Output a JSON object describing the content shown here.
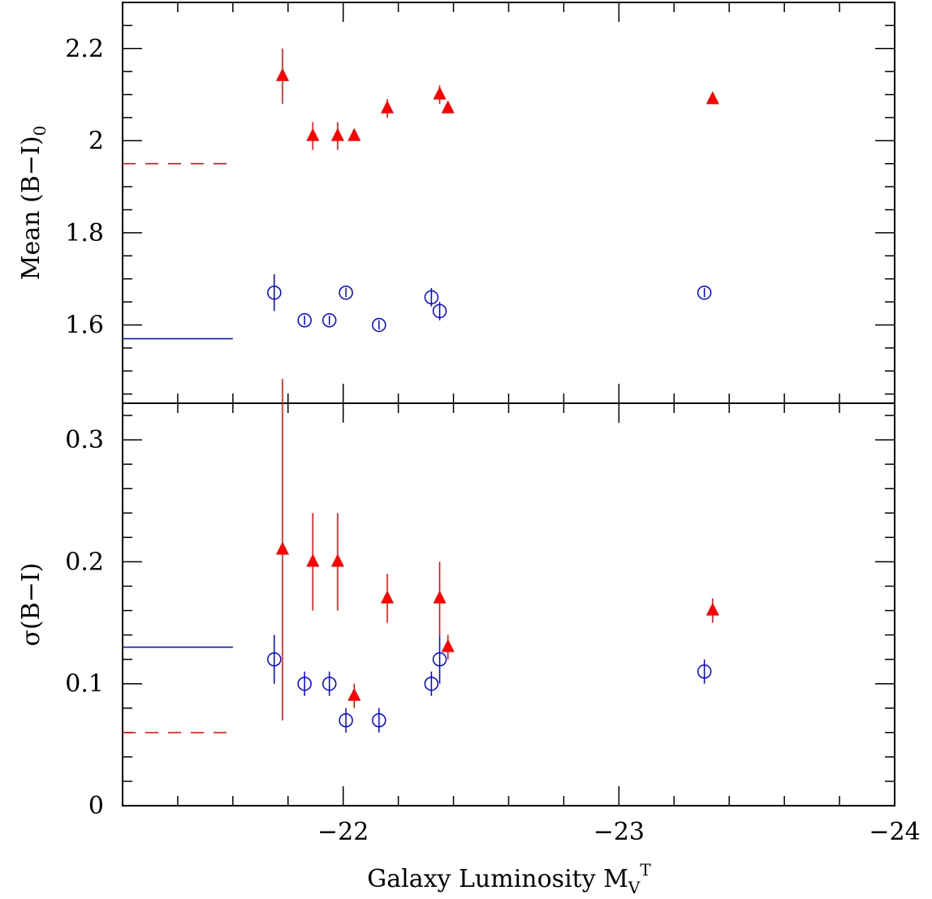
{
  "chart_data": [
    {
      "panel": "top",
      "type": "scatter",
      "ylabel": {
        "main": "Mean (B−I)",
        "sub": "0"
      },
      "xlim": [
        -21.2,
        -24
      ],
      "ylim": [
        1.43,
        2.3
      ],
      "yticks": [
        "1.6",
        "1.8",
        "2",
        "2.2"
      ],
      "grid": false,
      "series": [
        {
          "marker": "open-circle",
          "color": "#0000ff",
          "points": [
            {
              "x": -21.75,
              "y": 1.67,
              "err": 0.04
            },
            {
              "x": -21.86,
              "y": 1.61,
              "err": 0.01
            },
            {
              "x": -21.95,
              "y": 1.61,
              "err": 0.01
            },
            {
              "x": -22.01,
              "y": 1.67,
              "err": 0.01
            },
            {
              "x": -22.13,
              "y": 1.6,
              "err": 0.01
            },
            {
              "x": -22.32,
              "y": 1.66,
              "err": 0.02
            },
            {
              "x": -22.35,
              "y": 1.63,
              "err": 0.02
            },
            {
              "x": -23.31,
              "y": 1.67,
              "err": 0.01
            }
          ]
        },
        {
          "marker": "filled-triangle",
          "color": "#ff0000",
          "points": [
            {
              "x": -21.78,
              "y": 2.14,
              "err": 0.06
            },
            {
              "x": -21.89,
              "y": 2.01,
              "err": 0.03
            },
            {
              "x": -21.98,
              "y": 2.01,
              "err": 0.03
            },
            {
              "x": -22.04,
              "y": 2.01,
              "err": 0.0
            },
            {
              "x": -22.16,
              "y": 2.07,
              "err": 0.02
            },
            {
              "x": -22.35,
              "y": 2.1,
              "err": 0.02
            },
            {
              "x": -22.38,
              "y": 2.07,
              "err": 0.0
            },
            {
              "x": -23.34,
              "y": 2.09,
              "err": 0.0
            }
          ]
        }
      ],
      "reference_lines": [
        {
          "y": 1.95,
          "style": "dashed",
          "color": "#ff0000"
        },
        {
          "y": 1.57,
          "style": "solid",
          "color": "#0000ff"
        }
      ]
    },
    {
      "panel": "bottom",
      "type": "scatter",
      "ylabel": "σ(B−I)",
      "xlabel": {
        "main": "Galaxy Luminosity M",
        "sub": "V",
        "sup": "T"
      },
      "xlim": [
        -21.2,
        -24
      ],
      "ylim": [
        0,
        0.33
      ],
      "xticks": [
        "−22",
        "−23",
        "−24"
      ],
      "yticks": [
        "0",
        "0.1",
        "0.2",
        "0.3"
      ],
      "grid": false,
      "series": [
        {
          "marker": "open-circle",
          "color": "#0000ff",
          "points": [
            {
              "x": -21.75,
              "y": 0.12,
              "err": 0.02
            },
            {
              "x": -21.86,
              "y": 0.1,
              "err": 0.01
            },
            {
              "x": -21.95,
              "y": 0.1,
              "err": 0.01
            },
            {
              "x": -22.01,
              "y": 0.07,
              "err": 0.01
            },
            {
              "x": -22.13,
              "y": 0.07,
              "err": 0.01
            },
            {
              "x": -22.32,
              "y": 0.1,
              "err": 0.01
            },
            {
              "x": -22.35,
              "y": 0.12,
              "err": 0.02
            },
            {
              "x": -23.31,
              "y": 0.11,
              "err": 0.01
            }
          ]
        },
        {
          "marker": "filled-triangle",
          "color": "#ff0000",
          "points": [
            {
              "x": -21.78,
              "y": 0.21,
              "err": 0.14
            },
            {
              "x": -21.89,
              "y": 0.2,
              "err": 0.04
            },
            {
              "x": -21.98,
              "y": 0.2,
              "err": 0.04
            },
            {
              "x": -22.04,
              "y": 0.09,
              "err": 0.01
            },
            {
              "x": -22.16,
              "y": 0.17,
              "err": 0.02
            },
            {
              "x": -22.35,
              "y": 0.17,
              "err": 0.03
            },
            {
              "x": -22.38,
              "y": 0.13,
              "err": 0.01
            },
            {
              "x": -23.34,
              "y": 0.16,
              "err": 0.01
            }
          ]
        }
      ],
      "reference_lines": [
        {
          "y": 0.13,
          "style": "solid",
          "color": "#0000ff"
        },
        {
          "y": 0.06,
          "style": "dashed",
          "color": "#ff0000"
        }
      ]
    }
  ]
}
